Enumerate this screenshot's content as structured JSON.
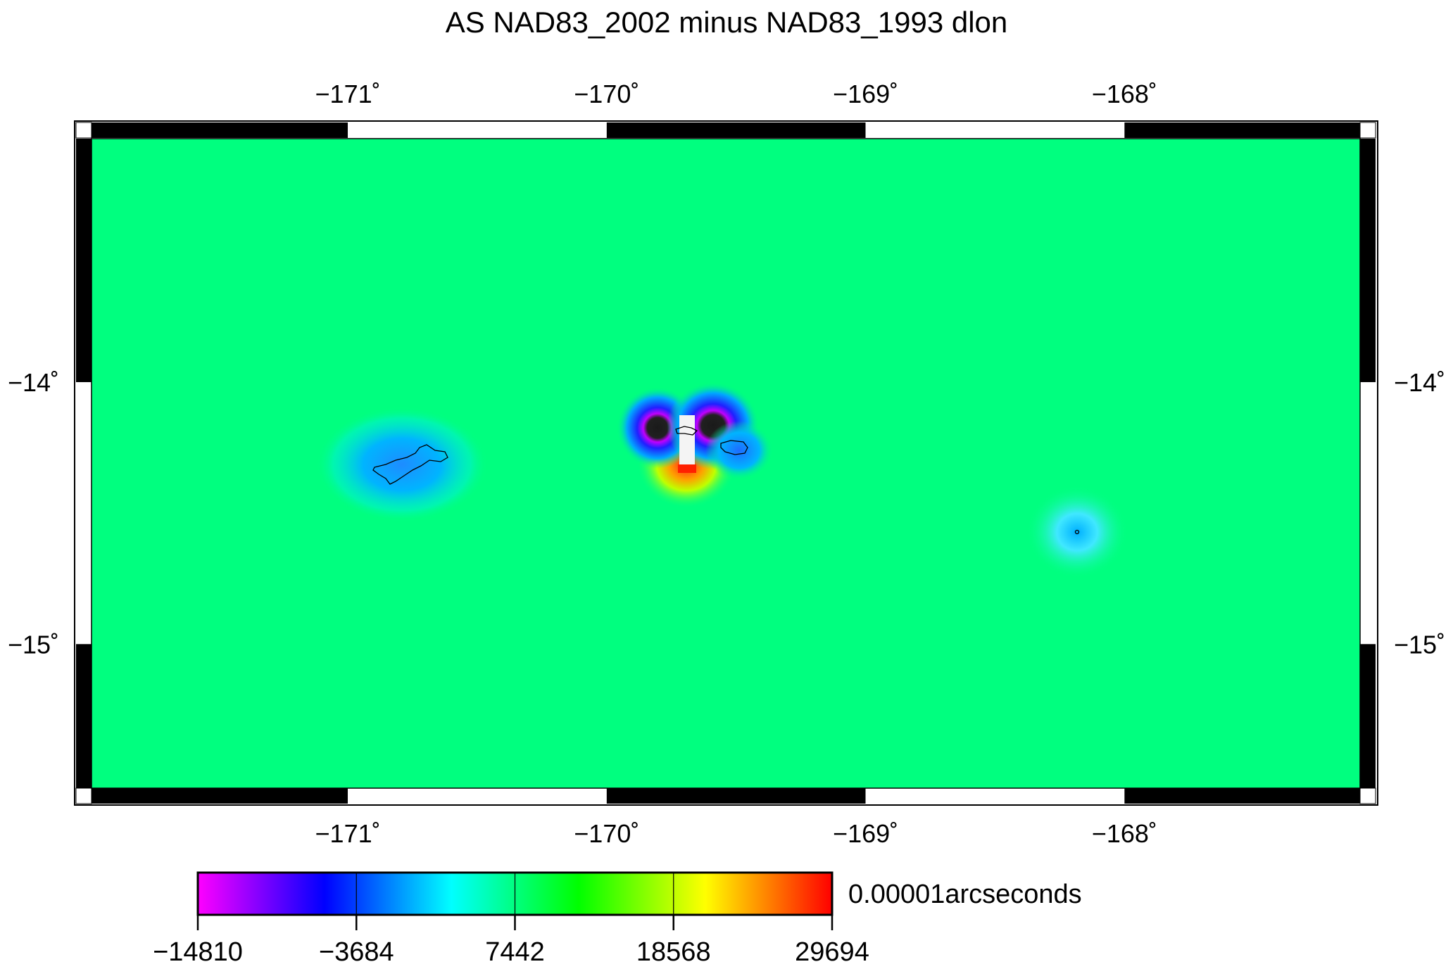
{
  "title": "AS NAD83_2002 minus NAD83_1993 dlon",
  "map": {
    "lon_range": [
      -171.99,
      -167.02
    ],
    "lat_range": [
      -15.5,
      -13.0
    ],
    "lon_ticks": [
      {
        "value": -171,
        "label": "−171˚"
      },
      {
        "value": -170,
        "label": "−170˚"
      },
      {
        "value": -169,
        "label": "−169˚"
      },
      {
        "value": -168,
        "label": "−168˚"
      }
    ],
    "lat_ticks": [
      {
        "value": -14,
        "label": "−14˚"
      },
      {
        "value": -15,
        "label": "−15˚"
      }
    ],
    "background_color": "#00ff7f",
    "anomalies": [
      {
        "name": "tutuila",
        "lon": -170.74,
        "lat": -14.3,
        "rx": 0.42,
        "ry": 0.26,
        "color": "#00c8ff",
        "core": "#1e8cff"
      },
      {
        "name": "ofu-olosega-west",
        "lon": -169.77,
        "lat": -14.17,
        "rx": 0.2,
        "ry": 0.2,
        "color": "#1e7cff",
        "core": "#3a00e0"
      },
      {
        "name": "ofu-olosega-east",
        "lon": -169.52,
        "lat": -14.16,
        "rx": 0.24,
        "ry": 0.22,
        "color": "#1e7cff",
        "core": "#3a00e0"
      },
      {
        "name": "tau",
        "lon": -169.45,
        "lat": -14.24,
        "rx": 0.18,
        "ry": 0.16,
        "color": "#2aa0ff",
        "core": "#2aa0ff"
      },
      {
        "name": "rose-atoll",
        "lon": -168.16,
        "lat": -14.55,
        "rx": 0.22,
        "ry": 0.2,
        "color": "#4fe8ff",
        "core": "#00c8ff"
      }
    ]
  },
  "colorbar": {
    "ticks": [
      "−14810",
      "−3684",
      "7442",
      "18568",
      "29694"
    ],
    "unit": "0.00001arcseconds",
    "colors": [
      "#ff00ff",
      "#0000ff",
      "#00ffff",
      "#00ff00",
      "#ffff00",
      "#ff0000"
    ]
  }
}
